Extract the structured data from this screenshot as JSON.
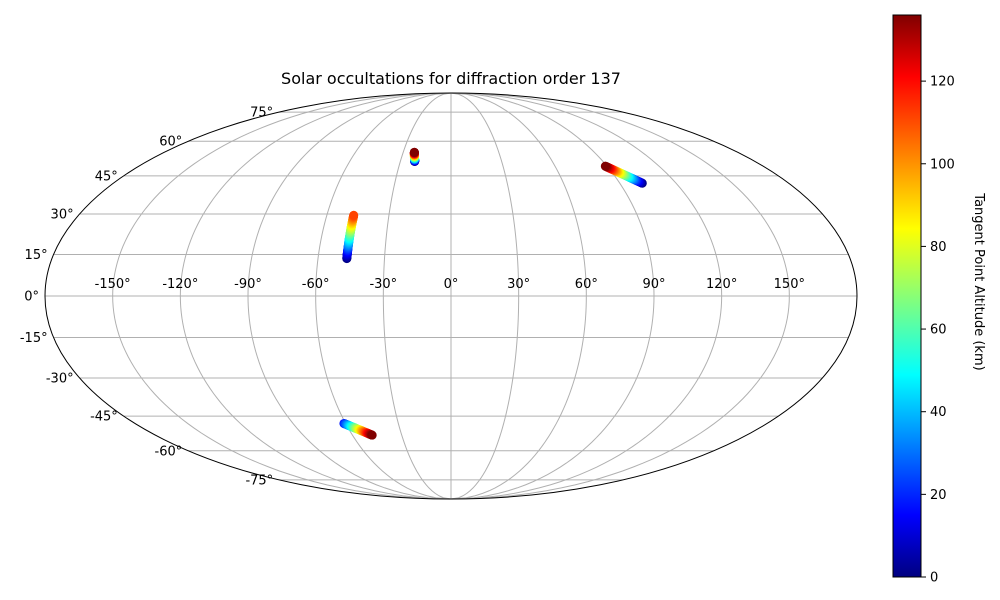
{
  "chart_data": {
    "type": "scatter",
    "projection": "mollweide",
    "title": "Solar occultations for diffraction order 137",
    "x_ticks": [
      -150,
      -120,
      -90,
      -60,
      -30,
      0,
      30,
      60,
      90,
      120,
      150
    ],
    "x_tick_labels": [
      "-150°",
      "-120°",
      "-90°",
      "-60°",
      "-30°",
      "0°",
      "30°",
      "60°",
      "90°",
      "120°",
      "150°"
    ],
    "y_ticks": [
      -75,
      -60,
      -45,
      -30,
      -15,
      0,
      15,
      30,
      45,
      60,
      75
    ],
    "y_tick_labels": [
      "-75°",
      "-60°",
      "-45°",
      "-30°",
      "-15°",
      "0°",
      "15°",
      "30°",
      "45°",
      "60°",
      "75°"
    ],
    "grid": true,
    "colorbar": {
      "label": "Tangent Point Altitude (km)",
      "colormap": "jet",
      "range": [
        0,
        136
      ],
      "ticks": [
        0,
        20,
        40,
        60,
        80,
        100,
        120
      ],
      "tick_labels": [
        "0",
        "20",
        "40",
        "60",
        "80",
        "100",
        "120"
      ]
    },
    "tracks": [
      {
        "lon_start": -47,
        "lat_start": 13.5,
        "lon_end": -47,
        "lat_end": 29.5,
        "alt_start": 0,
        "alt_end": 110
      },
      {
        "lon_start": -21.5,
        "lat_start": 51,
        "lon_end": -23,
        "lat_end": 55,
        "alt_start": 0,
        "alt_end": 136
      },
      {
        "lon_start": 102,
        "lat_start": 42,
        "lon_end": 89,
        "lat_end": 49,
        "alt_start": 0,
        "alt_end": 136
      },
      {
        "lon_start": -61,
        "lat_start": -48,
        "lon_end": -48,
        "lat_end": -53,
        "alt_start": 20,
        "alt_end": 136
      }
    ]
  }
}
